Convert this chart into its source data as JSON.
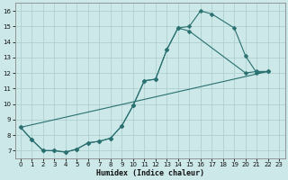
{
  "xlabel": "Humidex (Indice chaleur)",
  "bg_color": "#cce8e8",
  "grid_color": "#aacccc",
  "line_color": "#2a7070",
  "xlim": [
    -0.5,
    23.5
  ],
  "ylim": [
    6.5,
    16.5
  ],
  "xticks": [
    0,
    1,
    2,
    3,
    4,
    5,
    6,
    7,
    8,
    9,
    10,
    11,
    12,
    13,
    14,
    15,
    16,
    17,
    18,
    19,
    20,
    21,
    22,
    23
  ],
  "yticks": [
    7,
    8,
    9,
    10,
    11,
    12,
    13,
    14,
    15,
    16
  ],
  "line1_x": [
    0,
    1,
    2,
    3,
    4,
    5,
    6,
    7,
    8,
    9,
    10,
    11,
    12,
    13,
    14,
    15,
    20,
    21,
    22
  ],
  "line1_y": [
    8.5,
    7.7,
    7.0,
    7.0,
    6.9,
    7.1,
    7.5,
    7.6,
    7.8,
    8.6,
    9.9,
    11.5,
    11.6,
    13.5,
    14.9,
    14.7,
    12.0,
    12.1,
    12.1
  ],
  "line2_x": [
    0,
    1,
    2,
    3,
    4,
    5,
    6,
    7,
    8,
    9,
    10,
    11,
    12,
    13,
    14,
    15,
    16,
    17,
    19,
    20,
    21,
    22
  ],
  "line2_y": [
    8.5,
    7.7,
    7.0,
    7.0,
    6.9,
    7.1,
    7.5,
    7.6,
    7.8,
    8.6,
    9.9,
    11.5,
    11.6,
    13.5,
    14.9,
    15.0,
    16.0,
    15.8,
    14.9,
    13.1,
    12.0,
    12.1
  ],
  "line3_x": [
    0,
    22
  ],
  "line3_y": [
    8.5,
    12.1
  ],
  "marker_size": 2.5
}
